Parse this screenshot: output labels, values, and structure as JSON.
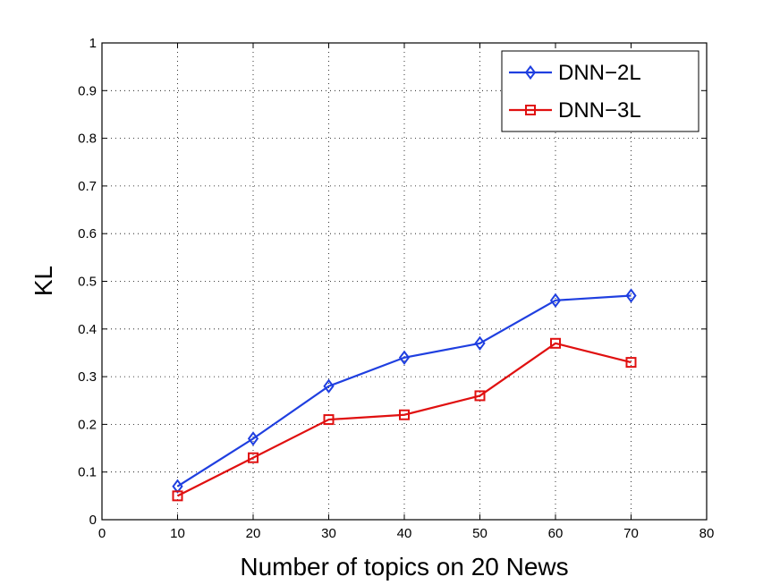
{
  "chart_data": {
    "type": "line",
    "xlabel": "Number of topics on 20 News",
    "ylabel": "KL",
    "xlim": [
      0,
      80
    ],
    "ylim": [
      0,
      1
    ],
    "xticks": [
      0,
      10,
      20,
      30,
      40,
      50,
      60,
      70,
      80
    ],
    "yticks": [
      0,
      0.1,
      0.2,
      0.3,
      0.4,
      0.5,
      0.6,
      0.7,
      0.8,
      0.9,
      1
    ],
    "xtick_labels": [
      "0",
      "10",
      "20",
      "30",
      "40",
      "50",
      "60",
      "70",
      "80"
    ],
    "ytick_labels": [
      "0",
      "0.1",
      "0.2",
      "0.3",
      "0.4",
      "0.5",
      "0.6",
      "0.7",
      "0.8",
      "0.9",
      "1"
    ],
    "grid": true,
    "legend_position": "top-right",
    "x": [
      10,
      20,
      30,
      40,
      50,
      60,
      70
    ],
    "series": [
      {
        "name": "DNN−2L",
        "color": "#1f3fe0",
        "marker": "diamond",
        "values": [
          0.07,
          0.17,
          0.28,
          0.34,
          0.37,
          0.46,
          0.47
        ]
      },
      {
        "name": "DNN−3L",
        "color": "#e01010",
        "marker": "square",
        "values": [
          0.05,
          0.13,
          0.21,
          0.22,
          0.26,
          0.37,
          0.33
        ]
      }
    ]
  }
}
